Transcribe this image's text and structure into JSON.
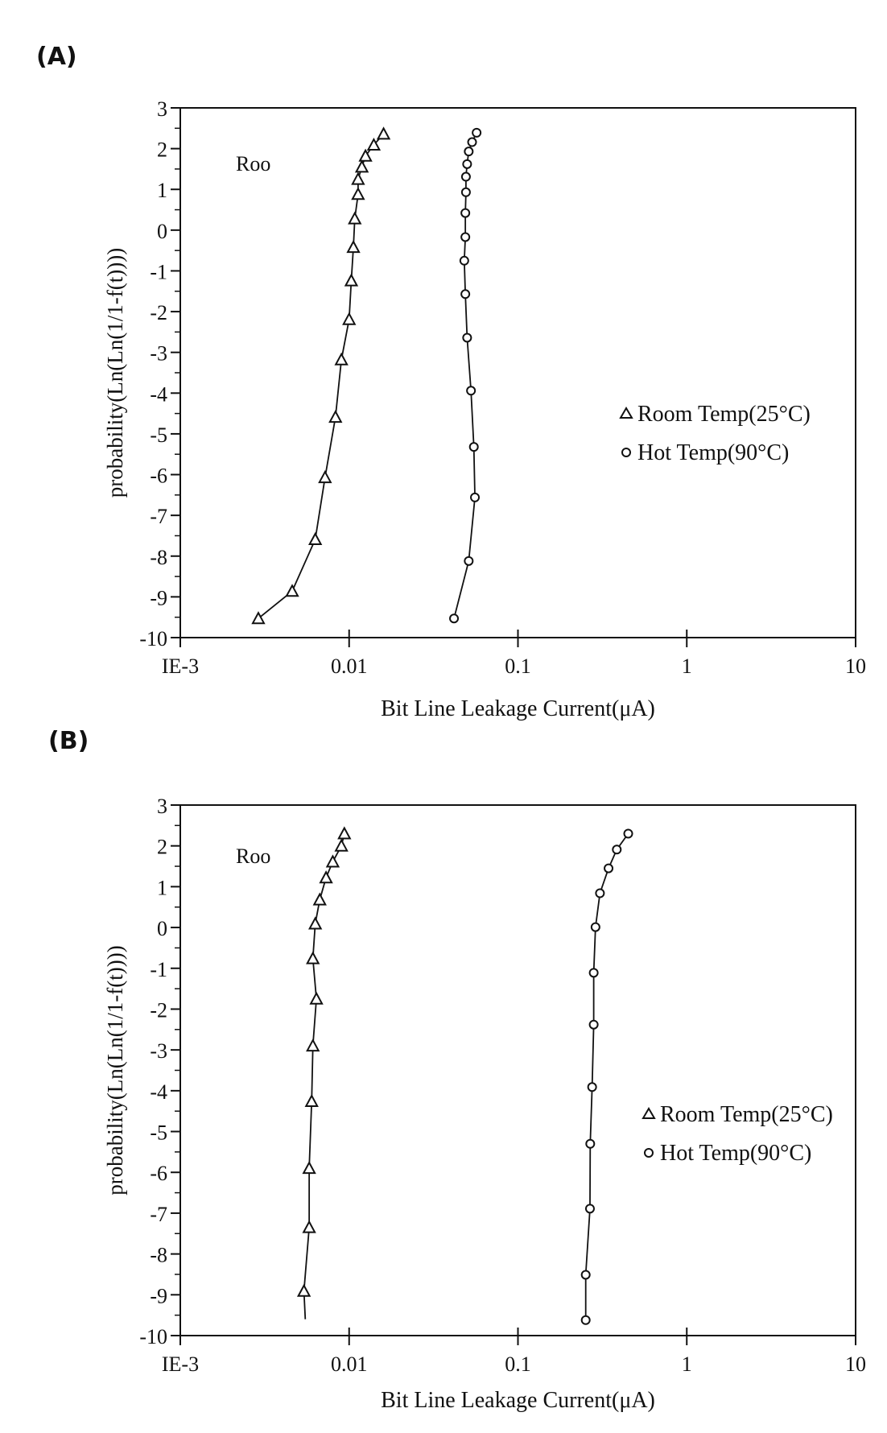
{
  "chart_data": [
    {
      "panel_label": "(A)",
      "type": "scatter",
      "title": "",
      "annotation": "Roo",
      "xlabel": "Bit Line Leakage Current(μA)",
      "ylabel": "probability(Ln(Ln(1/1-f(t))))",
      "xscale": "log",
      "xlim": [
        0.001,
        10
      ],
      "ylim": [
        -10,
        3
      ],
      "xticks": [
        "IE-3",
        "0.01",
        "0.1",
        "1",
        "10"
      ],
      "yticks": [
        "3",
        "2",
        "1",
        "0",
        "-1",
        "-2",
        "-3",
        "-4",
        "-5",
        "-6",
        "-7",
        "-8",
        "-9",
        "-10"
      ],
      "legend_position": "right-middle",
      "series": [
        {
          "name": "Room Temp(25°C)",
          "marker": "triangle",
          "x": [
            0.016,
            0.014,
            0.0125,
            0.0119,
            0.0113,
            0.0113,
            0.0108,
            0.0106,
            0.0103,
            0.01,
            0.009,
            0.0083,
            0.0072,
            0.0063,
            0.0046,
            0.0029
          ],
          "y": [
            2.36,
            2.09,
            1.82,
            1.55,
            1.25,
            0.88,
            0.28,
            -0.42,
            -1.24,
            -2.19,
            -3.18,
            -4.59,
            -6.07,
            -7.59,
            -8.86,
            -9.53
          ]
        },
        {
          "name": "Hot Temp(90°C)",
          "marker": "circle",
          "x": [
            0.0569,
            0.0535,
            0.0511,
            0.05,
            0.0492,
            0.0492,
            0.0488,
            0.0488,
            0.0481,
            0.0488,
            0.05,
            0.0527,
            0.0548,
            0.0556,
            0.0511,
            0.0418
          ],
          "y": [
            2.39,
            2.16,
            1.93,
            1.62,
            1.31,
            0.93,
            0.42,
            -0.17,
            -0.75,
            -1.57,
            -2.64,
            -3.94,
            -5.32,
            -6.56,
            -8.12,
            -9.53
          ]
        }
      ]
    },
    {
      "panel_label": "(B)",
      "type": "scatter",
      "title": "",
      "annotation": "Roo",
      "xlabel": "Bit Line Leakage Current(μA)",
      "ylabel": "probability(Ln(Ln(1/1-f(t))))",
      "xscale": "log",
      "xlim": [
        0.001,
        10
      ],
      "ylim": [
        -10,
        3
      ],
      "xticks": [
        "IE-3",
        "0.01",
        "0.1",
        "1",
        "10"
      ],
      "yticks": [
        "3",
        "2",
        "1",
        "0",
        "-1",
        "-2",
        "-3",
        "-4",
        "-5",
        "-6",
        "-7",
        "-8",
        "-9",
        "-10"
      ],
      "legend_position": "right-middle",
      "series": [
        {
          "name": "Room Temp(25°C)",
          "marker": "triangle",
          "x": [
            0.00937,
            0.009,
            0.008,
            0.0073,
            0.0067,
            0.0063,
            0.0061,
            0.0064,
            0.0061,
            0.006,
            0.0058,
            0.0058,
            0.0054
          ],
          "y": [
            2.3,
            2.0,
            1.61,
            1.22,
            0.68,
            0.09,
            -0.76,
            -1.75,
            -2.9,
            -4.26,
            -5.9,
            -7.35,
            -8.91
          ],
          "line_extends_to": [
            0.0055,
            -9.6
          ]
        },
        {
          "name": "Hot Temp(90°C)",
          "marker": "circle",
          "x": [
            0.45,
            0.385,
            0.344,
            0.306,
            0.288,
            0.281,
            0.281,
            0.275,
            0.268,
            0.267,
            0.252,
            0.252
          ],
          "y": [
            2.3,
            1.91,
            1.45,
            0.84,
            0.01,
            -1.11,
            -2.38,
            -3.91,
            -5.3,
            -6.89,
            -8.51,
            -9.62
          ]
        }
      ]
    }
  ]
}
